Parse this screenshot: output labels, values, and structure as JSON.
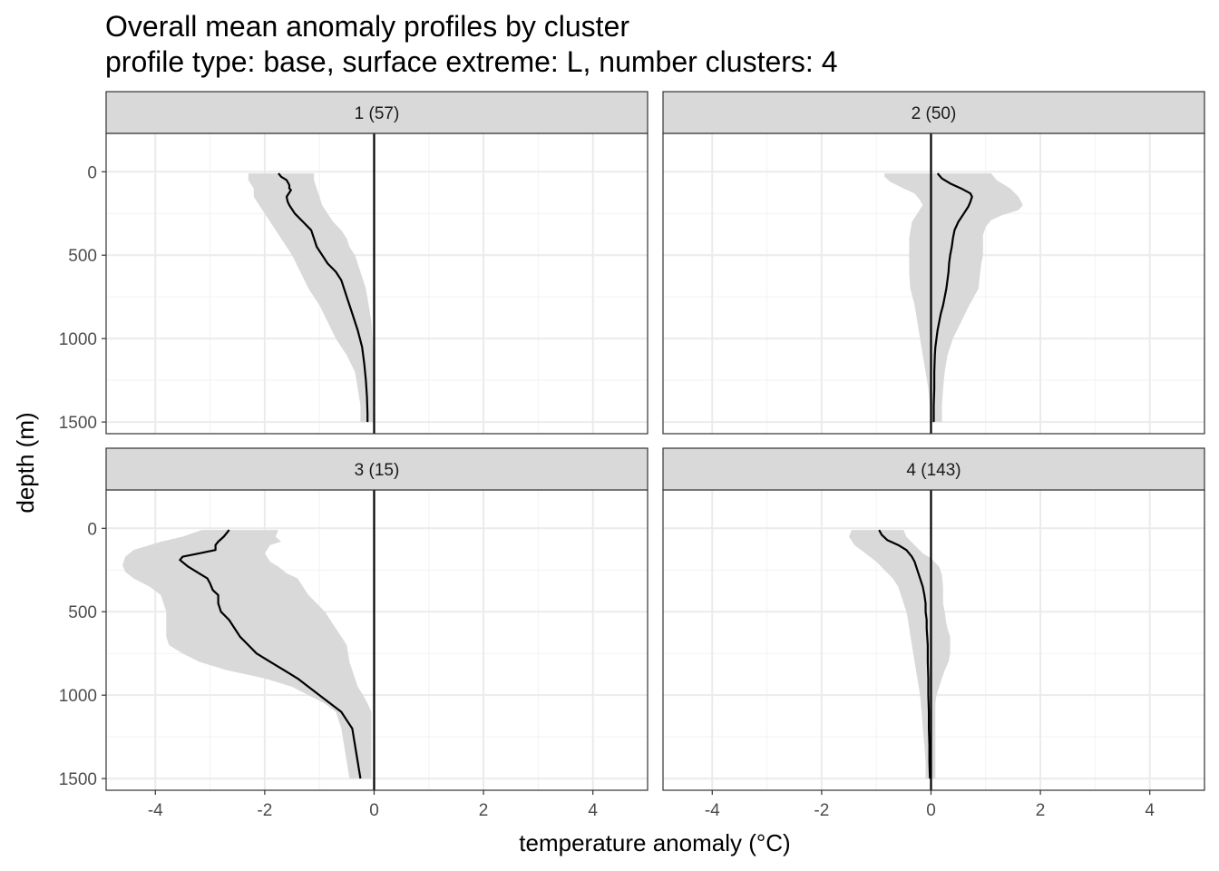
{
  "chart_data": {
    "type": "line",
    "title": "Overall mean anomaly profiles by cluster",
    "subtitle": "profile type: base, surface extreme: L, number clusters: 4",
    "xlabel": "temperature anomaly (°C)",
    "ylabel": "depth (m)",
    "xlim": [
      -4.9,
      5.0
    ],
    "ylim": [
      1570,
      -230
    ],
    "y_reversed": true,
    "x_ticks": [
      -4,
      -2,
      0,
      2,
      4
    ],
    "x_tick_labels": [
      "-4",
      "-2",
      "0",
      "2",
      "4"
    ],
    "y_ticks": [
      0,
      500,
      1000,
      1500
    ],
    "y_tick_labels": [
      "0",
      "500",
      "1000",
      "1500"
    ],
    "reference_line_x": 0,
    "grid": true,
    "facets": [
      {
        "strip": "1 (57)",
        "mean": [
          [
            -1.75,
            10
          ],
          [
            -1.7,
            30
          ],
          [
            -1.6,
            50
          ],
          [
            -1.55,
            80
          ],
          [
            -1.55,
            100
          ],
          [
            -1.52,
            110
          ],
          [
            -1.6,
            150
          ],
          [
            -1.58,
            180
          ],
          [
            -1.55,
            200
          ],
          [
            -1.45,
            250
          ],
          [
            -1.3,
            300
          ],
          [
            -1.15,
            350
          ],
          [
            -1.1,
            400
          ],
          [
            -1.05,
            450
          ],
          [
            -0.95,
            500
          ],
          [
            -0.85,
            550
          ],
          [
            -0.7,
            600
          ],
          [
            -0.6,
            650
          ],
          [
            -0.5,
            750
          ],
          [
            -0.4,
            850
          ],
          [
            -0.3,
            950
          ],
          [
            -0.22,
            1050
          ],
          [
            -0.18,
            1150
          ],
          [
            -0.15,
            1250
          ],
          [
            -0.13,
            1350
          ],
          [
            -0.12,
            1450
          ],
          [
            -0.12,
            1500
          ]
        ],
        "lower": [
          [
            -2.3,
            10
          ],
          [
            -2.3,
            50
          ],
          [
            -2.2,
            100
          ],
          [
            -2.2,
            150
          ],
          [
            -2.1,
            200
          ],
          [
            -2.0,
            250
          ],
          [
            -1.9,
            300
          ],
          [
            -1.8,
            350
          ],
          [
            -1.7,
            400
          ],
          [
            -1.6,
            450
          ],
          [
            -1.5,
            500
          ],
          [
            -1.35,
            600
          ],
          [
            -1.2,
            700
          ],
          [
            -1.0,
            800
          ],
          [
            -0.85,
            900
          ],
          [
            -0.7,
            1000
          ],
          [
            -0.5,
            1100
          ],
          [
            -0.35,
            1200
          ],
          [
            -0.3,
            1300
          ],
          [
            -0.25,
            1400
          ],
          [
            -0.25,
            1500
          ]
        ],
        "upper": [
          [
            -1.1,
            10
          ],
          [
            -1.1,
            50
          ],
          [
            -1.05,
            100
          ],
          [
            -1.0,
            150
          ],
          [
            -0.95,
            200
          ],
          [
            -0.85,
            250
          ],
          [
            -0.75,
            300
          ],
          [
            -0.6,
            350
          ],
          [
            -0.5,
            400
          ],
          [
            -0.45,
            450
          ],
          [
            -0.35,
            500
          ],
          [
            -0.25,
            600
          ],
          [
            -0.15,
            700
          ],
          [
            -0.1,
            800
          ],
          [
            -0.05,
            900
          ],
          [
            -0.03,
            1000
          ],
          [
            -0.02,
            1100
          ],
          [
            -0.02,
            1200
          ],
          [
            -0.02,
            1300
          ],
          [
            -0.02,
            1400
          ],
          [
            -0.02,
            1500
          ]
        ]
      },
      {
        "strip": "2 (50)",
        "mean": [
          [
            0.12,
            10
          ],
          [
            0.2,
            40
          ],
          [
            0.35,
            70
          ],
          [
            0.55,
            100
          ],
          [
            0.72,
            130
          ],
          [
            0.75,
            150
          ],
          [
            0.72,
            180
          ],
          [
            0.68,
            210
          ],
          [
            0.6,
            250
          ],
          [
            0.5,
            300
          ],
          [
            0.43,
            350
          ],
          [
            0.4,
            400
          ],
          [
            0.38,
            450
          ],
          [
            0.35,
            500
          ],
          [
            0.33,
            550
          ],
          [
            0.32,
            600
          ],
          [
            0.3,
            650
          ],
          [
            0.28,
            700
          ],
          [
            0.25,
            750
          ],
          [
            0.22,
            800
          ],
          [
            0.18,
            850
          ],
          [
            0.15,
            900
          ],
          [
            0.12,
            950
          ],
          [
            0.1,
            1000
          ],
          [
            0.08,
            1050
          ],
          [
            0.07,
            1100
          ],
          [
            0.06,
            1200
          ],
          [
            0.06,
            1300
          ],
          [
            0.05,
            1400
          ],
          [
            0.05,
            1500
          ]
        ],
        "lower": [
          [
            -0.85,
            10
          ],
          [
            -0.85,
            30
          ],
          [
            -0.75,
            60
          ],
          [
            -0.5,
            100
          ],
          [
            -0.3,
            130
          ],
          [
            -0.2,
            170
          ],
          [
            -0.15,
            200
          ],
          [
            -0.25,
            250
          ],
          [
            -0.35,
            300
          ],
          [
            -0.4,
            400
          ],
          [
            -0.4,
            500
          ],
          [
            -0.4,
            600
          ],
          [
            -0.38,
            700
          ],
          [
            -0.3,
            800
          ],
          [
            -0.25,
            900
          ],
          [
            -0.2,
            1000
          ],
          [
            -0.15,
            1100
          ],
          [
            -0.1,
            1200
          ],
          [
            -0.05,
            1300
          ],
          [
            -0.02,
            1400
          ],
          [
            -0.02,
            1500
          ]
        ],
        "upper": [
          [
            1.1,
            10
          ],
          [
            1.2,
            50
          ],
          [
            1.45,
            100
          ],
          [
            1.6,
            150
          ],
          [
            1.68,
            200
          ],
          [
            1.6,
            230
          ],
          [
            1.3,
            260
          ],
          [
            1.1,
            290
          ],
          [
            1.0,
            330
          ],
          [
            0.95,
            380
          ],
          [
            0.95,
            450
          ],
          [
            0.95,
            500
          ],
          [
            0.92,
            550
          ],
          [
            0.9,
            600
          ],
          [
            0.87,
            700
          ],
          [
            0.7,
            800
          ],
          [
            0.55,
            900
          ],
          [
            0.4,
            1000
          ],
          [
            0.3,
            1100
          ],
          [
            0.25,
            1200
          ],
          [
            0.22,
            1300
          ],
          [
            0.2,
            1400
          ],
          [
            0.2,
            1500
          ]
        ]
      },
      {
        "strip": "3 (15)",
        "mean": [
          [
            -2.65,
            10
          ],
          [
            -2.75,
            50
          ],
          [
            -2.85,
            80
          ],
          [
            -2.9,
            100
          ],
          [
            -2.9,
            130
          ],
          [
            -3.2,
            150
          ],
          [
            -3.5,
            170
          ],
          [
            -3.55,
            190
          ],
          [
            -3.4,
            230
          ],
          [
            -3.2,
            270
          ],
          [
            -3.05,
            300
          ],
          [
            -3.0,
            330
          ],
          [
            -2.95,
            370
          ],
          [
            -2.85,
            400
          ],
          [
            -2.85,
            450
          ],
          [
            -2.8,
            500
          ],
          [
            -2.65,
            550
          ],
          [
            -2.55,
            600
          ],
          [
            -2.45,
            650
          ],
          [
            -2.3,
            700
          ],
          [
            -2.15,
            750
          ],
          [
            -1.9,
            800
          ],
          [
            -1.65,
            850
          ],
          [
            -1.4,
            900
          ],
          [
            -1.2,
            950
          ],
          [
            -1.0,
            1000
          ],
          [
            -0.8,
            1050
          ],
          [
            -0.6,
            1100
          ],
          [
            -0.5,
            1150
          ],
          [
            -0.4,
            1200
          ],
          [
            -0.35,
            1300
          ],
          [
            -0.3,
            1400
          ],
          [
            -0.25,
            1500
          ]
        ],
        "lower": [
          [
            -3.15,
            10
          ],
          [
            -3.5,
            50
          ],
          [
            -3.9,
            80
          ],
          [
            -4.4,
            130
          ],
          [
            -4.55,
            170
          ],
          [
            -4.6,
            220
          ],
          [
            -4.55,
            260
          ],
          [
            -4.4,
            300
          ],
          [
            -4.1,
            350
          ],
          [
            -3.9,
            400
          ],
          [
            -3.85,
            450
          ],
          [
            -3.8,
            500
          ],
          [
            -3.8,
            550
          ],
          [
            -3.8,
            600
          ],
          [
            -3.8,
            650
          ],
          [
            -3.75,
            700
          ],
          [
            -3.5,
            750
          ],
          [
            -3.2,
            800
          ],
          [
            -2.7,
            850
          ],
          [
            -2.0,
            900
          ],
          [
            -1.5,
            950
          ],
          [
            -1.2,
            1000
          ],
          [
            -0.9,
            1050
          ],
          [
            -0.7,
            1100
          ],
          [
            -0.6,
            1200
          ],
          [
            -0.55,
            1300
          ],
          [
            -0.5,
            1400
          ],
          [
            -0.45,
            1500
          ]
        ],
        "upper": [
          [
            -1.75,
            10
          ],
          [
            -1.8,
            50
          ],
          [
            -1.7,
            80
          ],
          [
            -1.9,
            100
          ],
          [
            -2.0,
            150
          ],
          [
            -1.9,
            200
          ],
          [
            -1.75,
            230
          ],
          [
            -1.6,
            270
          ],
          [
            -1.4,
            300
          ],
          [
            -1.3,
            350
          ],
          [
            -1.2,
            400
          ],
          [
            -1.05,
            450
          ],
          [
            -0.9,
            500
          ],
          [
            -0.8,
            550
          ],
          [
            -0.7,
            600
          ],
          [
            -0.6,
            650
          ],
          [
            -0.5,
            700
          ],
          [
            -0.45,
            800
          ],
          [
            -0.35,
            900
          ],
          [
            -0.3,
            950
          ],
          [
            -0.2,
            1000
          ],
          [
            -0.12,
            1050
          ],
          [
            -0.05,
            1100
          ],
          [
            -0.05,
            1200
          ],
          [
            -0.05,
            1300
          ],
          [
            -0.05,
            1400
          ],
          [
            -0.05,
            1500
          ]
        ]
      },
      {
        "strip": "4 (143)",
        "mean": [
          [
            -0.95,
            10
          ],
          [
            -0.9,
            40
          ],
          [
            -0.8,
            70
          ],
          [
            -0.6,
            100
          ],
          [
            -0.45,
            130
          ],
          [
            -0.35,
            170
          ],
          [
            -0.3,
            200
          ],
          [
            -0.25,
            250
          ],
          [
            -0.2,
            300
          ],
          [
            -0.15,
            350
          ],
          [
            -0.12,
            400
          ],
          [
            -0.1,
            450
          ],
          [
            -0.1,
            500
          ],
          [
            -0.08,
            550
          ],
          [
            -0.08,
            600
          ],
          [
            -0.07,
            650
          ],
          [
            -0.06,
            700
          ],
          [
            -0.06,
            800
          ],
          [
            -0.05,
            900
          ],
          [
            -0.05,
            1000
          ],
          [
            -0.04,
            1100
          ],
          [
            -0.04,
            1200
          ],
          [
            -0.03,
            1300
          ],
          [
            -0.03,
            1400
          ],
          [
            -0.02,
            1500
          ]
        ],
        "lower": [
          [
            -1.45,
            10
          ],
          [
            -1.5,
            50
          ],
          [
            -1.4,
            100
          ],
          [
            -1.2,
            150
          ],
          [
            -1.0,
            200
          ],
          [
            -0.85,
            250
          ],
          [
            -0.7,
            300
          ],
          [
            -0.6,
            350
          ],
          [
            -0.55,
            400
          ],
          [
            -0.5,
            450
          ],
          [
            -0.45,
            500
          ],
          [
            -0.42,
            550
          ],
          [
            -0.4,
            600
          ],
          [
            -0.35,
            700
          ],
          [
            -0.3,
            800
          ],
          [
            -0.25,
            900
          ],
          [
            -0.2,
            1000
          ],
          [
            -0.17,
            1100
          ],
          [
            -0.15,
            1200
          ],
          [
            -0.12,
            1300
          ],
          [
            -0.1,
            1400
          ],
          [
            -0.1,
            1500
          ]
        ],
        "upper": [
          [
            -0.5,
            10
          ],
          [
            -0.45,
            50
          ],
          [
            -0.3,
            100
          ],
          [
            -0.15,
            150
          ],
          [
            0.0,
            180
          ],
          [
            0.15,
            230
          ],
          [
            0.2,
            280
          ],
          [
            0.22,
            350
          ],
          [
            0.22,
            400
          ],
          [
            0.22,
            450
          ],
          [
            0.25,
            500
          ],
          [
            0.27,
            550
          ],
          [
            0.3,
            600
          ],
          [
            0.35,
            650
          ],
          [
            0.35,
            700
          ],
          [
            0.35,
            750
          ],
          [
            0.32,
            800
          ],
          [
            0.25,
            850
          ],
          [
            0.2,
            900
          ],
          [
            0.15,
            950
          ],
          [
            0.1,
            1000
          ],
          [
            0.08,
            1050
          ],
          [
            0.08,
            1100
          ],
          [
            0.08,
            1200
          ],
          [
            0.08,
            1300
          ],
          [
            0.08,
            1400
          ],
          [
            0.08,
            1500
          ]
        ]
      }
    ]
  }
}
